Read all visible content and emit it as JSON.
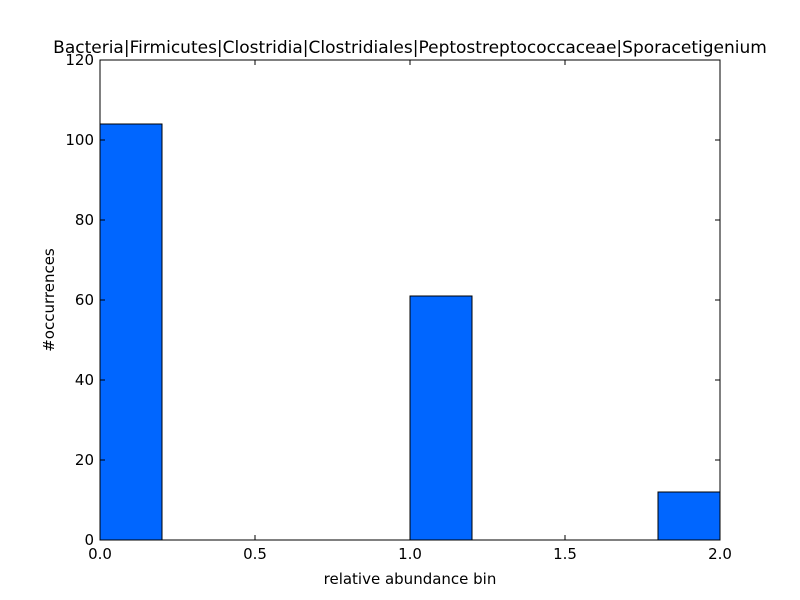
{
  "chart_data": {
    "type": "bar",
    "title": "Bacteria|Firmicutes|Clostridia|Clostridiales|Peptostreptococcaceae|Sporacetigenium",
    "xlabel": "relative abundance bin",
    "ylabel": "#occurrences",
    "xlim": [
      0.0,
      2.0
    ],
    "ylim": [
      0,
      120
    ],
    "xticks": [
      "0.0",
      "0.5",
      "1.0",
      "1.5",
      "2.0"
    ],
    "yticks": [
      "0",
      "20",
      "40",
      "60",
      "80",
      "100",
      "120"
    ],
    "grid": false,
    "bar_color": "#0066ff",
    "bars": [
      {
        "x0": 0.0,
        "x1": 0.2,
        "value": 104
      },
      {
        "x0": 0.2,
        "x1": 0.4,
        "value": 0
      },
      {
        "x0": 0.4,
        "x1": 0.6,
        "value": 0
      },
      {
        "x0": 0.6,
        "x1": 0.8,
        "value": 0
      },
      {
        "x0": 0.8,
        "x1": 1.0,
        "value": 0
      },
      {
        "x0": 1.0,
        "x1": 1.2,
        "value": 61
      },
      {
        "x0": 1.2,
        "x1": 1.4,
        "value": 0
      },
      {
        "x0": 1.4,
        "x1": 1.6,
        "value": 0
      },
      {
        "x0": 1.6,
        "x1": 1.8,
        "value": 0
      },
      {
        "x0": 1.8,
        "x1": 2.0,
        "value": 12
      }
    ]
  }
}
